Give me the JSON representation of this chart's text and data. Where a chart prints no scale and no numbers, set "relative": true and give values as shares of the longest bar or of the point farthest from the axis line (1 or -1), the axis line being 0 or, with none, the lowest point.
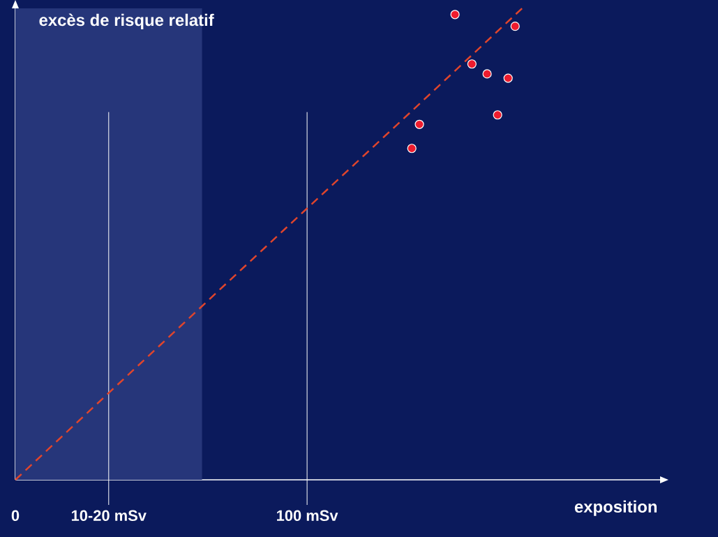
{
  "chart_data": {
    "type": "scatter",
    "xlabel": "exposition",
    "ylabel": "excès de risque relatif",
    "relative": true,
    "xlim": [
      0,
      221
    ],
    "xticks": [
      {
        "value": 0,
        "label": "0"
      },
      {
        "value": 32,
        "label": "10-20 mSv"
      },
      {
        "value": 100,
        "label": "100 mSv"
      }
    ],
    "series": [
      {
        "type": "scatter",
        "color": "#ee1c2e",
        "marker": "circle",
        "x": [
          150.7,
          171.3,
          156.5,
          161.7,
          168.9,
          165.3,
          138.5,
          135.9
        ],
        "values": [
          0.987,
          0.962,
          0.882,
          0.861,
          0.852,
          0.774,
          0.754,
          0.703
        ]
      },
      {
        "type": "line",
        "color": "#e0452c",
        "line_style": "dashed",
        "marker": "none",
        "x": [
          0,
          173.7
        ],
        "values": [
          0,
          1
        ]
      }
    ],
    "ref_lines": [
      {
        "axis": "x",
        "value": 32,
        "color": "#ffffff"
      },
      {
        "axis": "x",
        "value": 100,
        "color": "#ffffff"
      }
    ],
    "bands": [
      {
        "axis": "x",
        "from": 0,
        "to": 64,
        "color": "#26367a"
      }
    ],
    "grid": false
  }
}
